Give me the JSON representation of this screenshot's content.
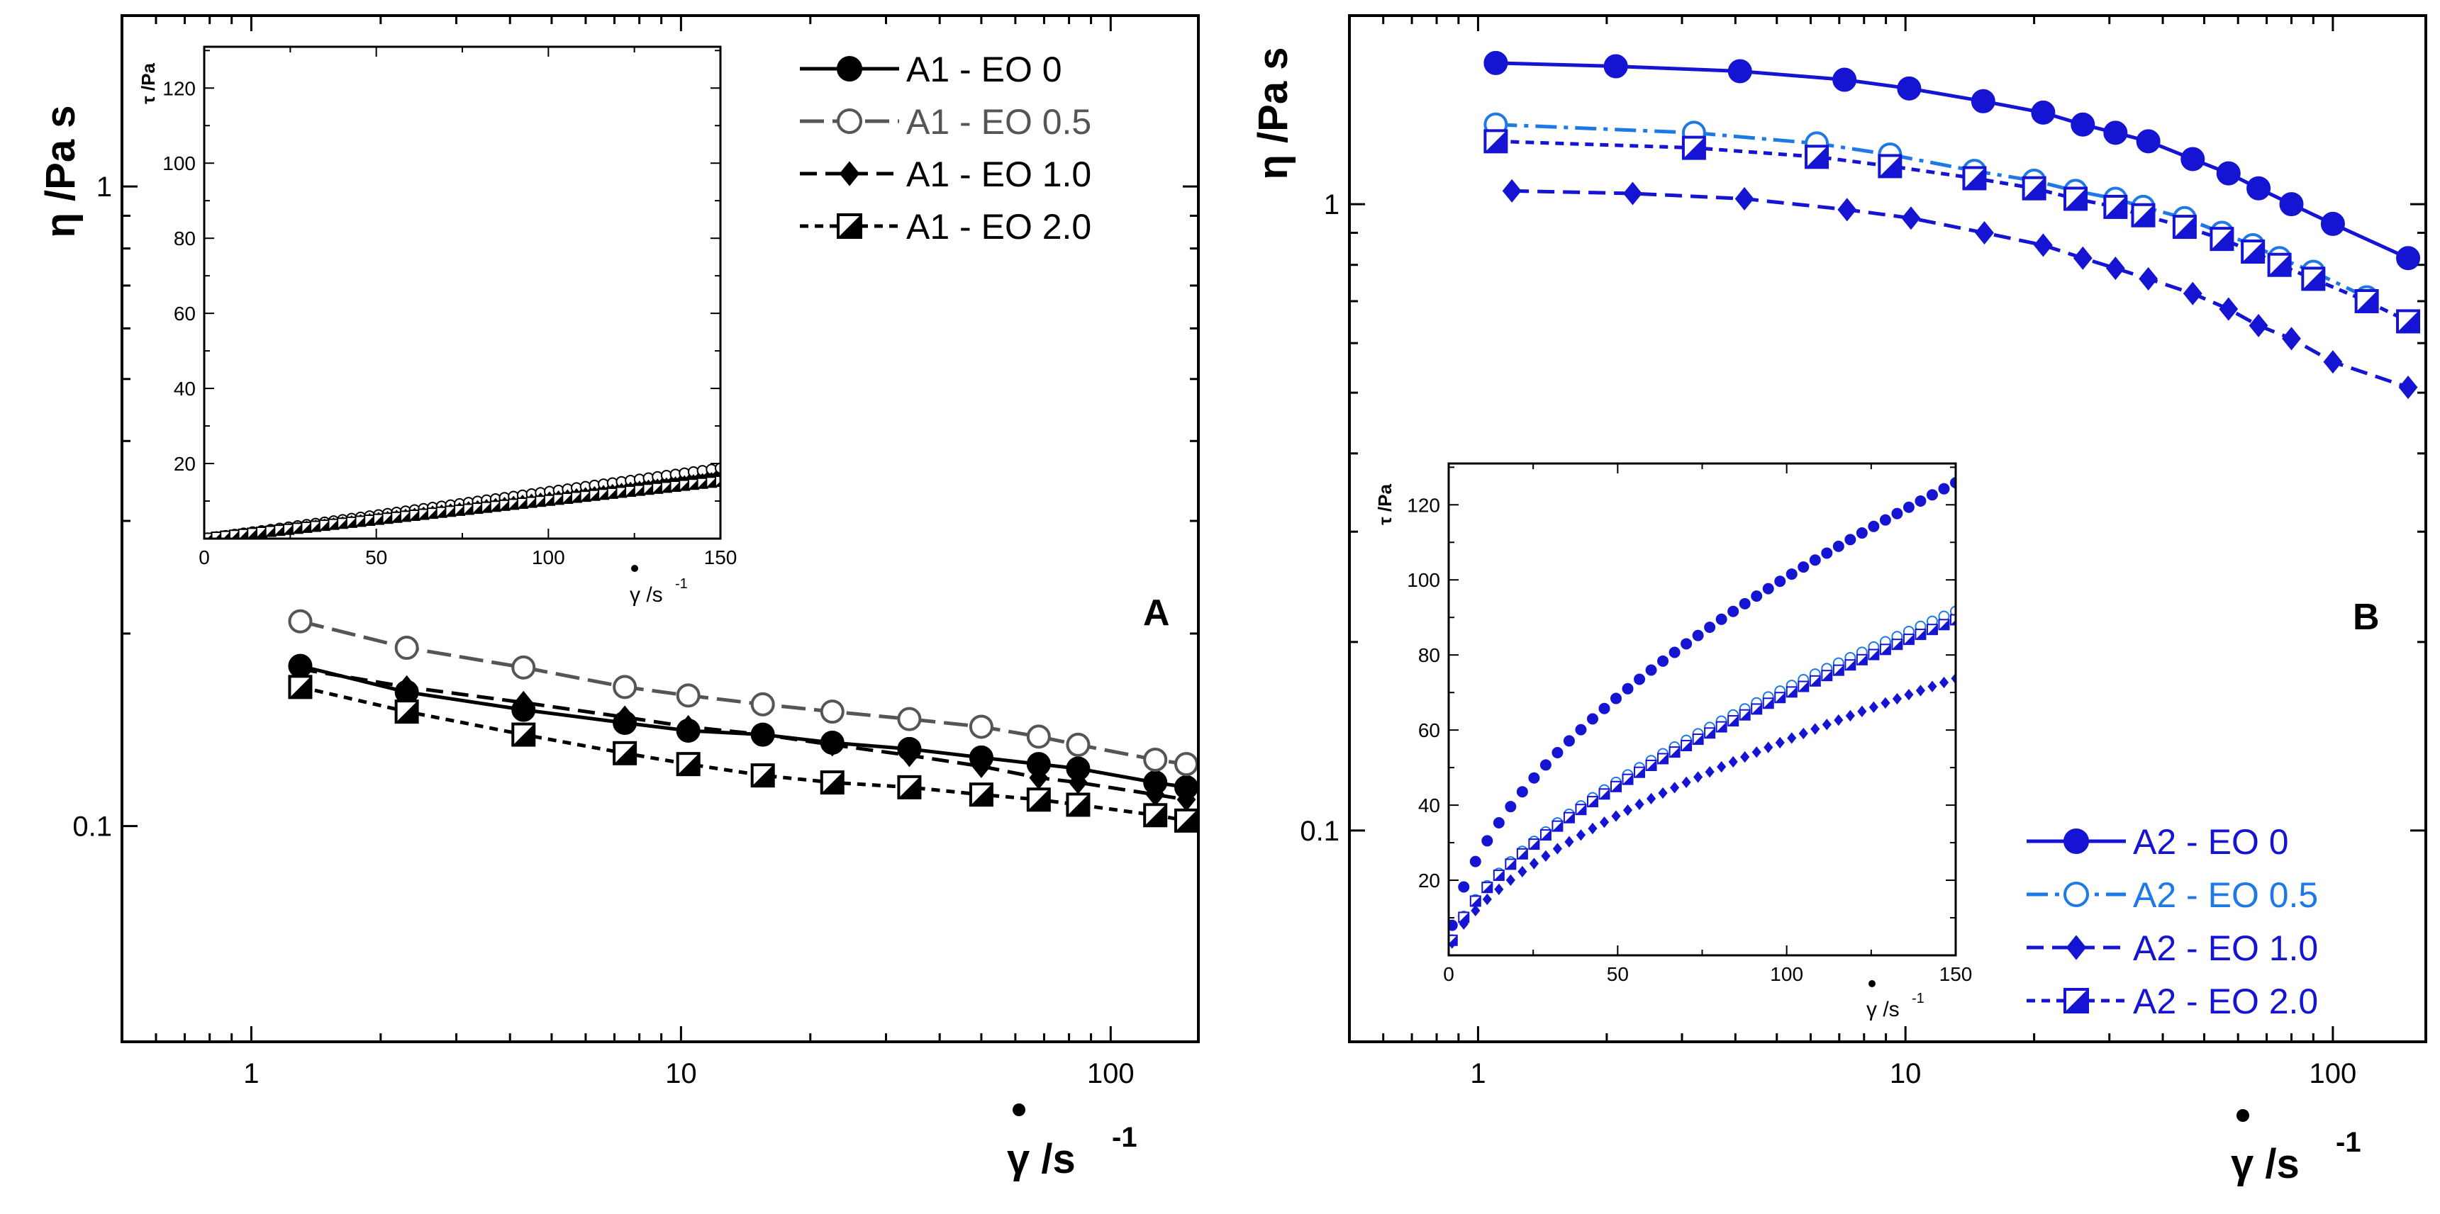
{
  "chart_data": [
    {
      "panel": "A",
      "type": "line",
      "panel_label": "A",
      "xlabel": "γ /s",
      "xlabel_exp": "-1",
      "ylabel": "η /Pa s",
      "x_scale": "log",
      "y_scale": "log",
      "xlim": [
        0.5,
        160
      ],
      "ylim": [
        0.046,
        1.85
      ],
      "x_ticks": [
        {
          "v": 1,
          "label": "1"
        },
        {
          "v": 10,
          "label": "10"
        },
        {
          "v": 100,
          "label": "100"
        }
      ],
      "y_ticks": [
        {
          "v": 0.1,
          "label": "0.1"
        },
        {
          "v": 1,
          "label": "1"
        }
      ],
      "legend_position": "top-right",
      "series": [
        {
          "name": "A1 - EO 0",
          "color": "#000000",
          "marker": "circle",
          "dash": "solid",
          "x": [
            1.3,
            2.3,
            4.3,
            7.4,
            10.4,
            15.5,
            22.5,
            34,
            50,
            68,
            84,
            127,
            150
          ],
          "y": [
            0.178,
            0.162,
            0.152,
            0.145,
            0.141,
            0.139,
            0.135,
            0.132,
            0.128,
            0.125,
            0.123,
            0.117,
            0.115
          ]
        },
        {
          "name": "A1 - EO 0.5",
          "color": "#555555",
          "marker": "open-circle",
          "dash": "longdash",
          "x": [
            1.3,
            2.3,
            4.3,
            7.4,
            10.4,
            15.5,
            22.5,
            34,
            50,
            68,
            84,
            127,
            150
          ],
          "y": [
            0.209,
            0.19,
            0.177,
            0.165,
            0.16,
            0.155,
            0.151,
            0.147,
            0.143,
            0.138,
            0.134,
            0.127,
            0.125
          ]
        },
        {
          "name": "A1 - EO 1.0",
          "color": "#000000",
          "marker": "diamond",
          "dash": "dash",
          "x": [
            1.3,
            2.3,
            4.3,
            7.4,
            10.4,
            15.5,
            22.5,
            34,
            50,
            68,
            84,
            127,
            150
          ],
          "y": [
            0.176,
            0.165,
            0.156,
            0.148,
            0.143,
            0.139,
            0.134,
            0.129,
            0.124,
            0.119,
            0.117,
            0.112,
            0.11
          ]
        },
        {
          "name": "A1 - EO 2.0",
          "color": "#000000",
          "marker": "half-square",
          "dash": "shortdash",
          "x": [
            1.3,
            2.3,
            4.3,
            7.4,
            10.4,
            15.5,
            22.5,
            34,
            50,
            68,
            84,
            127,
            150
          ],
          "y": [
            0.165,
            0.151,
            0.139,
            0.13,
            0.125,
            0.12,
            0.117,
            0.115,
            0.112,
            0.11,
            0.108,
            0.104,
            0.102
          ]
        }
      ],
      "inset": {
        "type": "scatter",
        "xlabel": "γ /s",
        "xlabel_exp": "-1",
        "ylabel": "τ /Pa",
        "xlim": [
          0,
          150
        ],
        "ylim": [
          0,
          131
        ],
        "x_ticks": [
          0,
          50,
          100,
          150
        ],
        "y_ticks": [
          20,
          40,
          60,
          80,
          100,
          120
        ],
        "series": [
          {
            "name": "A1 - EO 0",
            "color": "#000000",
            "marker": "circle",
            "slope": 0.115,
            "x_start": 1,
            "x_end": 150,
            "n": 58
          },
          {
            "name": "A1 - EO 0.5",
            "color": "#000000",
            "marker": "open-circle",
            "slope": 0.125,
            "x_start": 1,
            "x_end": 150,
            "n": 58
          },
          {
            "name": "A1 - EO 1.0",
            "color": "#000000",
            "marker": "diamond",
            "slope": 0.11,
            "x_start": 1,
            "x_end": 150,
            "n": 58
          },
          {
            "name": "A1 - EO 2.0",
            "color": "#000000",
            "marker": "half-square",
            "slope": 0.102,
            "x_start": 1,
            "x_end": 150,
            "n": 58
          }
        ]
      }
    },
    {
      "panel": "B",
      "type": "line",
      "panel_label": "B",
      "xlabel": "γ /s",
      "xlabel_exp": "-1",
      "ylabel": "η /Pa s",
      "x_scale": "log",
      "y_scale": "log",
      "xlim": [
        0.5,
        165
      ],
      "ylim": [
        0.046,
        2.0
      ],
      "x_ticks": [
        {
          "v": 1,
          "label": "1"
        },
        {
          "v": 10,
          "label": "10"
        },
        {
          "v": 100,
          "label": "100"
        }
      ],
      "y_ticks": [
        {
          "v": 0.1,
          "label": "0.1"
        },
        {
          "v": 1,
          "label": "1"
        }
      ],
      "legend_position": "bottom-right",
      "series": [
        {
          "name": "A2 - EO 0",
          "color": "#1414d2",
          "marker": "circle",
          "dash": "solid",
          "x": [
            1.1,
            2.1,
            4.1,
            7.2,
            10.2,
            15.2,
            21,
            26,
            31,
            37,
            47,
            57,
            67,
            80,
            100,
            150
          ],
          "y": [
            1.68,
            1.66,
            1.63,
            1.58,
            1.53,
            1.46,
            1.4,
            1.34,
            1.3,
            1.26,
            1.18,
            1.12,
            1.06,
            1.0,
            0.93,
            0.82
          ]
        },
        {
          "name": "A2 - EO 0.5",
          "color": "#1e78e6",
          "marker": "open-circle",
          "dash": "dashdot",
          "x": [
            1.1,
            3.2,
            6.2,
            9.2,
            14.5,
            20,
            25,
            31,
            36,
            45,
            55,
            65,
            75,
            90,
            120
          ],
          "y": [
            1.34,
            1.3,
            1.25,
            1.2,
            1.13,
            1.09,
            1.05,
            1.02,
            0.99,
            0.95,
            0.9,
            0.86,
            0.82,
            0.78,
            0.71
          ]
        },
        {
          "name": "A2 - EO 1.0",
          "color": "#1414d2",
          "marker": "diamond",
          "dash": "dash",
          "x": [
            1.2,
            2.3,
            4.2,
            7.3,
            10.3,
            15.3,
            21,
            26,
            31,
            37,
            47,
            57,
            67,
            80,
            100,
            150
          ],
          "y": [
            1.05,
            1.04,
            1.02,
            0.98,
            0.95,
            0.9,
            0.86,
            0.82,
            0.79,
            0.76,
            0.72,
            0.68,
            0.64,
            0.61,
            0.56,
            0.51
          ]
        },
        {
          "name": "A2 - EO 2.0",
          "color": "#1414d2",
          "marker": "half-square",
          "dash": "shortdash",
          "x": [
            1.1,
            3.2,
            6.2,
            9.2,
            14.5,
            20,
            25,
            31,
            36,
            45,
            55,
            65,
            75,
            90,
            120,
            150
          ],
          "y": [
            1.26,
            1.23,
            1.19,
            1.15,
            1.1,
            1.06,
            1.02,
            0.99,
            0.96,
            0.92,
            0.88,
            0.84,
            0.8,
            0.76,
            0.7,
            0.65
          ]
        }
      ],
      "inset": {
        "type": "scatter",
        "xlabel": "γ /s",
        "xlabel_exp": "-1",
        "ylabel": "τ /Pa",
        "xlim": [
          0,
          150
        ],
        "ylim": [
          0,
          131
        ],
        "x_ticks": [
          0,
          50,
          100,
          150
        ],
        "y_ticks": [
          20,
          40,
          60,
          80,
          100,
          120
        ],
        "series": [
          {
            "name": "A2 - EO 0",
            "color": "#1414d2",
            "marker": "circle",
            "a": 8.0,
            "b": 0.55,
            "x_start": 1,
            "x_end": 150,
            "n": 44
          },
          {
            "name": "A2 - EO 0.5",
            "color": "#1e78e6",
            "marker": "open-circle",
            "a": 4.1,
            "b": 0.62,
            "x_start": 1,
            "x_end": 150,
            "n": 44
          },
          {
            "name": "A2 - EO 1.0",
            "color": "#1414d2",
            "marker": "diamond",
            "a": 3.3,
            "b": 0.62,
            "x_start": 1,
            "x_end": 150,
            "n": 44
          },
          {
            "name": "A2 - EO 2.0",
            "color": "#1414d2",
            "marker": "half-square",
            "a": 4.0,
            "b": 0.62,
            "x_start": 1,
            "x_end": 150,
            "n": 44
          }
        ]
      }
    }
  ]
}
